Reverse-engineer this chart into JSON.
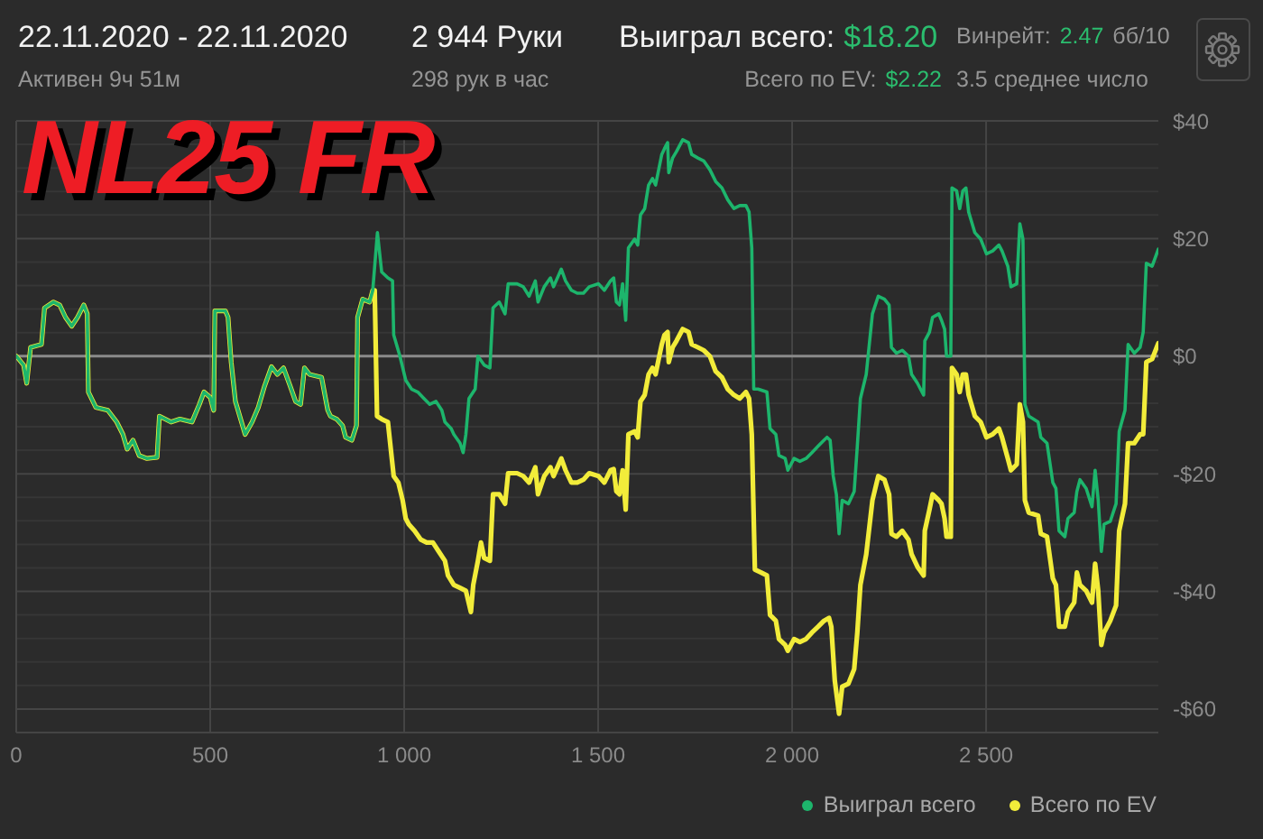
{
  "chart_data": {
    "type": "line",
    "title": "NL25 FR",
    "subtitle": "22.11.2020 - 22.11.2020",
    "annotations": [
      "Активен 9ч 51м",
      "2 944 Руки",
      "298 рук в час",
      "Выиграл всего:",
      "$18.20",
      "Всего по EV:",
      "$2.22",
      "Винрейт:",
      "2.47",
      "бб/10",
      "3.5 среднее число"
    ],
    "xlim": [
      0,
      2944
    ],
    "xticks": [
      0,
      500,
      {
        "value": 1000,
        "label": "1 000"
      },
      {
        "value": 1500,
        "label": "1 500"
      },
      {
        "value": 2000,
        "label": "2 000"
      },
      {
        "value": 2500,
        "label": "2 500"
      }
    ],
    "ylim": [
      -64,
      40
    ],
    "yticks": [
      {
        "value": -64,
        "label": null
      },
      {
        "value": -60,
        "label": "-$60"
      },
      {
        "value": -56,
        "label": null
      },
      {
        "value": -52,
        "label": null
      },
      {
        "value": -48,
        "label": null
      },
      {
        "value": -44,
        "label": null
      },
      {
        "value": -40,
        "label": "-$40"
      },
      {
        "value": -36,
        "label": null
      },
      {
        "value": -32,
        "label": null
      },
      {
        "value": -28,
        "label": null
      },
      {
        "value": -24,
        "label": null
      },
      {
        "value": -20,
        "label": "-$20"
      },
      {
        "value": -16,
        "label": null
      },
      {
        "value": -12,
        "label": null
      },
      {
        "value": -8,
        "label": null
      },
      {
        "value": -4,
        "label": null
      },
      {
        "value": 0,
        "label": "$0"
      },
      {
        "value": 4,
        "label": null
      },
      {
        "value": 8,
        "label": null
      },
      {
        "value": 12,
        "label": null
      },
      {
        "value": 16,
        "label": null
      },
      {
        "value": 20,
        "label": "$20"
      },
      {
        "value": 24,
        "label": null
      },
      {
        "value": 28,
        "label": null
      },
      {
        "value": 32,
        "label": null
      },
      {
        "value": 36,
        "label": null
      },
      {
        "value": 40,
        "label": "$40"
      }
    ],
    "grid": true,
    "legend": "bottom right",
    "ref_lines": [
      {
        "axis": "y",
        "value": 0,
        "color": "#8a8a8a"
      }
    ],
    "series": [
      {
        "name": "Выиграл всего",
        "color": "#1db56c",
        "x": [
          0,
          19,
          27,
          37,
          65,
          73,
          96,
          112,
          127,
          143,
          158,
          174,
          183,
          186,
          205,
          236,
          259,
          275,
          286,
          301,
          317,
          337,
          363,
          369,
          399,
          422,
          453,
          472,
          484,
          500,
          509,
          512,
          539,
          546,
          554,
          565,
          590,
          608,
          624,
          640,
          658,
          673,
          689,
          705,
          720,
          733,
          743,
          756,
          787,
          803,
          810,
          826,
          841,
          849,
          865,
          877,
          880,
          893,
          911,
          919,
          931,
          942,
          958,
          970,
          973,
          989,
          1004,
          1019,
          1035,
          1051,
          1066,
          1082,
          1097,
          1105,
          1121,
          1128,
          1144,
          1152,
          1159,
          1167,
          1183,
          1190,
          1206,
          1221,
          1229,
          1245,
          1260,
          1268,
          1291,
          1307,
          1322,
          1338,
          1345,
          1361,
          1377,
          1385,
          1405,
          1416,
          1431,
          1446,
          1462,
          1477,
          1501,
          1516,
          1532,
          1540,
          1547,
          1555,
          1563,
          1571,
          1578,
          1594,
          1602,
          1609,
          1620,
          1630,
          1640,
          1648,
          1656,
          1664,
          1671,
          1679,
          1682,
          1692,
          1702,
          1718,
          1733,
          1741,
          1757,
          1772,
          1788,
          1803,
          1819,
          1834,
          1850,
          1865,
          1881,
          1889,
          1896,
          1901,
          1912,
          1935,
          1943,
          1958,
          1966,
          1982,
          1989,
          2005,
          2020,
          2036,
          2051,
          2067,
          2082,
          2090,
          2098,
          2106,
          2114,
          2121,
          2129,
          2145,
          2160,
          2168,
          2176,
          2191,
          2207,
          2222,
          2238,
          2250,
          2256,
          2269,
          2284,
          2300,
          2308,
          2323,
          2339,
          2342,
          2354,
          2362,
          2378,
          2385,
          2393,
          2398,
          2409,
          2412,
          2424,
          2432,
          2440,
          2448,
          2455,
          2471,
          2486,
          2501,
          2517,
          2533,
          2541,
          2556,
          2564,
          2579,
          2587,
          2595,
          2600,
          2610,
          2634,
          2641,
          2657,
          2672,
          2680,
          2688,
          2703,
          2711,
          2727,
          2734,
          2742,
          2758,
          2773,
          2781,
          2789,
          2797,
          2804,
          2820,
          2835,
          2843,
          2858,
          2866,
          2882,
          2897,
          2905,
          2913,
          2928,
          2944
        ],
        "values": [
          0,
          -1.5,
          -4.6,
          1.5,
          2.0,
          8.2,
          9.2,
          8.7,
          6.6,
          5.1,
          6.6,
          8.7,
          7.2,
          -6.1,
          -8.7,
          -9.2,
          -11.2,
          -13.3,
          -15.8,
          -14.3,
          -16.9,
          -17.4,
          -17.2,
          -10.2,
          -11.2,
          -10.7,
          -11.2,
          -8.2,
          -6.1,
          -7.0,
          -9.2,
          7.7,
          7.7,
          6.6,
          -1.0,
          -7.7,
          -13.3,
          -11.2,
          -8.7,
          -5.1,
          -1.8,
          -3.1,
          -2.0,
          -4.9,
          -7.7,
          -8.2,
          -2.0,
          -3.1,
          -3.6,
          -9.2,
          -10.2,
          -10.7,
          -11.8,
          -13.8,
          -14.3,
          -11.8,
          6.6,
          9.7,
          9.2,
          11.2,
          21.0,
          14.3,
          13.3,
          12.8,
          3.6,
          0,
          -4.1,
          -5.6,
          -6.1,
          -7.2,
          -8.2,
          -7.7,
          -9.2,
          -11.2,
          -12.3,
          -13.3,
          -14.8,
          -16.4,
          -13.3,
          -7.2,
          -5.6,
          0,
          -1.5,
          -2.0,
          8.2,
          9.2,
          7.2,
          12.3,
          12.3,
          11.8,
          10.2,
          12.8,
          9.2,
          11.8,
          13.3,
          11.8,
          14.8,
          12.8,
          11.2,
          10.7,
          10.7,
          11.8,
          12.3,
          11.2,
          12.8,
          13.3,
          9.2,
          8.7,
          12.3,
          6.1,
          18.4,
          19.9,
          18.9,
          24.0,
          25.1,
          29.1,
          30.2,
          29.1,
          31.7,
          34.3,
          35.3,
          36.3,
          31.2,
          33.7,
          34.8,
          36.8,
          36.3,
          34.3,
          33.7,
          33.2,
          31.7,
          29.7,
          28.6,
          26.6,
          25.1,
          25.6,
          25.6,
          24.5,
          18.4,
          -5.6,
          -5.6,
          -6.1,
          -12.3,
          -13.3,
          -16.9,
          -17.4,
          -19.4,
          -17.4,
          -17.9,
          -17.4,
          -16.4,
          -15.3,
          -14.3,
          -13.8,
          -14.3,
          -20.4,
          -23.5,
          -30.2,
          -24.5,
          -25.1,
          -23.0,
          -15.3,
          -7.2,
          -3.1,
          7.2,
          10.2,
          9.7,
          8.7,
          1.5,
          0.5,
          1.0,
          0,
          -3.1,
          -4.6,
          -6.6,
          2.6,
          4.1,
          6.6,
          7.2,
          6.1,
          4.6,
          0,
          0,
          28.6,
          28.1,
          25.1,
          28.1,
          28.6,
          24.5,
          21.0,
          19.9,
          17.4,
          17.9,
          18.9,
          17.9,
          15.3,
          11.8,
          12.3,
          22.5,
          19.9,
          -8.2,
          -10.2,
          -11.2,
          -13.8,
          -14.8,
          -21.5,
          -22.5,
          -29.7,
          -30.7,
          -27.6,
          -26.6,
          -23.0,
          -21.0,
          -22.5,
          -25.6,
          -19.4,
          -24.5,
          -33.2,
          -28.6,
          -28.1,
          -25.1,
          -12.8,
          -9.2,
          2.0,
          0.5,
          1.5,
          4.1,
          15.8,
          15.3,
          18.2
        ]
      },
      {
        "name": "Всего по EV",
        "color": "#f2ec3a",
        "x": [
          0,
          19,
          27,
          37,
          65,
          73,
          96,
          112,
          127,
          143,
          158,
          174,
          183,
          186,
          205,
          236,
          259,
          275,
          286,
          301,
          317,
          337,
          363,
          369,
          399,
          422,
          453,
          472,
          484,
          500,
          509,
          512,
          539,
          546,
          554,
          565,
          590,
          608,
          624,
          640,
          658,
          673,
          689,
          705,
          720,
          733,
          743,
          756,
          787,
          803,
          810,
          826,
          841,
          849,
          865,
          877,
          880,
          893,
          911,
          919,
          924,
          930,
          942,
          958,
          973,
          985,
          996,
          1004,
          1012,
          1027,
          1043,
          1058,
          1074,
          1089,
          1105,
          1113,
          1128,
          1144,
          1159,
          1172,
          1178,
          1190,
          1198,
          1206,
          1221,
          1229,
          1245,
          1260,
          1268,
          1291,
          1307,
          1322,
          1338,
          1345,
          1361,
          1377,
          1385,
          1405,
          1416,
          1431,
          1446,
          1462,
          1477,
          1501,
          1516,
          1532,
          1540,
          1547,
          1555,
          1563,
          1571,
          1578,
          1594,
          1602,
          1609,
          1620,
          1630,
          1640,
          1648,
          1656,
          1664,
          1671,
          1679,
          1682,
          1692,
          1702,
          1718,
          1733,
          1741,
          1757,
          1772,
          1788,
          1803,
          1819,
          1834,
          1850,
          1865,
          1881,
          1889,
          1896,
          1904,
          1920,
          1935,
          1943,
          1958,
          1966,
          1982,
          1989,
          2005,
          2020,
          2036,
          2051,
          2067,
          2082,
          2095,
          2101,
          2110,
          2121,
          2129,
          2145,
          2160,
          2168,
          2176,
          2191,
          2207,
          2222,
          2238,
          2250,
          2256,
          2269,
          2284,
          2300,
          2308,
          2323,
          2339,
          2342,
          2354,
          2362,
          2378,
          2385,
          2393,
          2398,
          2409,
          2412,
          2424,
          2432,
          2440,
          2448,
          2455,
          2471,
          2486,
          2501,
          2517,
          2533,
          2541,
          2556,
          2564,
          2579,
          2587,
          2595,
          2600,
          2610,
          2634,
          2641,
          2657,
          2672,
          2680,
          2688,
          2703,
          2711,
          2727,
          2734,
          2742,
          2758,
          2773,
          2781,
          2789,
          2797,
          2804,
          2820,
          2835,
          2843,
          2858,
          2866,
          2882,
          2897,
          2905,
          2913,
          2928,
          2944
        ],
        "values": [
          0,
          -1.5,
          -4.6,
          1.5,
          2.0,
          8.2,
          9.2,
          8.7,
          6.6,
          5.1,
          6.6,
          8.7,
          7.2,
          -6.1,
          -8.7,
          -9.2,
          -11.2,
          -13.3,
          -15.8,
          -14.3,
          -16.9,
          -17.4,
          -17.2,
          -10.2,
          -11.2,
          -10.7,
          -11.2,
          -8.2,
          -6.1,
          -7.0,
          -9.2,
          7.7,
          7.7,
          6.6,
          -1.0,
          -7.7,
          -13.3,
          -11.2,
          -8.7,
          -5.1,
          -1.8,
          -3.1,
          -2.0,
          -4.9,
          -7.7,
          -8.2,
          -2.0,
          -3.1,
          -3.6,
          -9.2,
          -10.2,
          -10.7,
          -11.8,
          -13.8,
          -14.3,
          -11.8,
          6.6,
          9.7,
          9.2,
          11.2,
          11.2,
          -10.2,
          -10.7,
          -11.2,
          -20.4,
          -21.5,
          -24.5,
          -27.6,
          -28.6,
          -29.7,
          -31.2,
          -31.7,
          -31.7,
          -33.2,
          -34.8,
          -37.3,
          -38.9,
          -39.4,
          -39.9,
          -43.5,
          -38.9,
          -34.8,
          -31.7,
          -34.3,
          -34.8,
          -23.5,
          -23.5,
          -25.1,
          -19.9,
          -19.9,
          -20.4,
          -21.5,
          -18.9,
          -23.5,
          -20.4,
          -18.9,
          -20.4,
          -17.4,
          -19.4,
          -21.5,
          -21.5,
          -21.0,
          -19.9,
          -20.4,
          -21.5,
          -19.4,
          -19.2,
          -23.0,
          -23.5,
          -19.4,
          -26.1,
          -13.3,
          -12.8,
          -13.8,
          -7.7,
          -6.6,
          -3.1,
          -2.0,
          -3.1,
          -0.5,
          2.0,
          3.6,
          4.1,
          -1.0,
          1.5,
          2.6,
          4.6,
          4.1,
          2.0,
          1.5,
          1.0,
          0,
          -2.6,
          -3.6,
          -5.6,
          -6.6,
          -7.2,
          -6.1,
          -7.2,
          -13.3,
          -36.3,
          -36.8,
          -37.3,
          -44.0,
          -45.0,
          -48.1,
          -49.1,
          -50.1,
          -48.1,
          -48.6,
          -48.1,
          -47.0,
          -46.0,
          -45.0,
          -44.5,
          -46.0,
          -55.2,
          -60.8,
          -56.2,
          -55.7,
          -53.2,
          -47.0,
          -38.9,
          -33.7,
          -24.5,
          -20.4,
          -21.0,
          -23.5,
          -30.2,
          -30.7,
          -29.7,
          -31.2,
          -33.7,
          -35.8,
          -37.3,
          -29.7,
          -26.1,
          -23.5,
          -24.5,
          -25.1,
          -27.6,
          -30.7,
          -30.7,
          -2.0,
          -3.1,
          -6.1,
          -3.1,
          -3.1,
          -6.6,
          -10.2,
          -11.2,
          -13.8,
          -13.3,
          -12.3,
          -13.8,
          -17.4,
          -19.4,
          -18.4,
          -8.2,
          -11.2,
          -24.5,
          -26.6,
          -27.1,
          -30.2,
          -30.7,
          -37.8,
          -38.9,
          -46.0,
          -46.0,
          -43.5,
          -41.9,
          -36.8,
          -38.9,
          -39.9,
          -41.9,
          -35.3,
          -39.9,
          -49.1,
          -47.0,
          -45.0,
          -42.4,
          -29.7,
          -25.1,
          -14.8,
          -14.8,
          -13.3,
          -13.3,
          -1.0,
          -0.5,
          2.2
        ]
      }
    ]
  }
}
